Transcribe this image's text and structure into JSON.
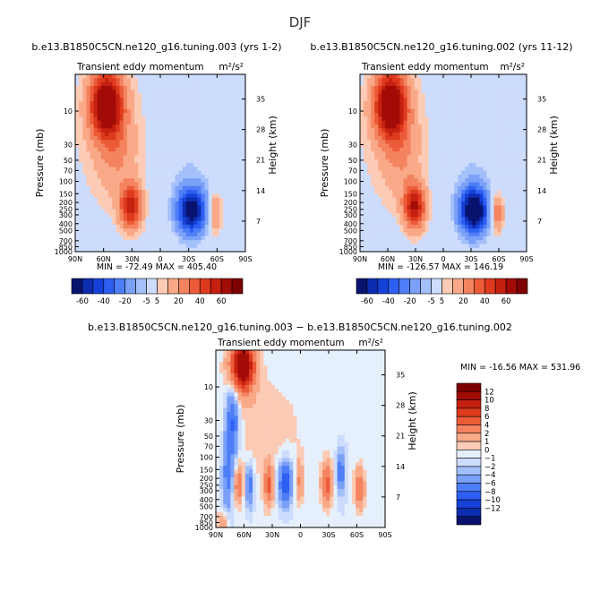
{
  "page": {
    "title": "DJF"
  },
  "colors": {
    "neg": [
      "#08136e",
      "#0c2db0",
      "#1541d8",
      "#2d5ff2",
      "#4e7ef7",
      "#7aa0f8",
      "#a4c0fb",
      "#cddcfd"
    ],
    "neutral": "#e6f0fd",
    "pos": [
      "#fbe2d6",
      "#fccbb5",
      "#f9a988",
      "#f4835f",
      "#ec5b38",
      "#dd3a1e",
      "#c52010",
      "#a20b06",
      "#7d0000"
    ]
  },
  "chart_data": [
    {
      "type": "contour",
      "id": "top-left",
      "title": "b.e13.B1850C5CN.ne120_g16.tuning.003 (yrs 1-2)",
      "left_label": "Transient eddy momentum",
      "right_label": "m²/s²",
      "ylabel": "Pressure (mb)",
      "y2label": "Height (km)",
      "x_ticks": [
        "90N",
        "60N",
        "30N",
        "0",
        "30S",
        "60S",
        "90S"
      ],
      "x_values": [
        90,
        60,
        30,
        0,
        -30,
        -60,
        -90
      ],
      "p_ticks": [
        10,
        30,
        50,
        70,
        100,
        150,
        200,
        250,
        300,
        400,
        500,
        700,
        850,
        1000
      ],
      "p_labels": [
        "10",
        "30",
        "50",
        "70",
        "100",
        "150",
        "200",
        "250",
        "300",
        "400",
        "500",
        "700",
        "850",
        "1000"
      ],
      "z_ticks": [
        35,
        28,
        21,
        14,
        7
      ],
      "ylim": [
        1000,
        3
      ],
      "min": -72.49,
      "max": 405.4,
      "stats_text": "MIN = -72.49   MAX = 405.40",
      "levels": [
        -60,
        -50,
        -40,
        -30,
        -20,
        -10,
        -5,
        5,
        10,
        20,
        30,
        40,
        50,
        60
      ],
      "legend_labels": [
        "-60",
        "-40",
        "-20",
        "-5",
        "5",
        "20",
        "40",
        "60"
      ],
      "features": [
        {
          "lat": 57,
          "p": 8,
          "amp": 80,
          "sx": 12,
          "sy": 0.75
        },
        {
          "lat": 46,
          "p": 40,
          "amp": 14,
          "sx": 14,
          "sy": 1.0
        },
        {
          "lat": 31,
          "p": 230,
          "amp": 55,
          "sx": 8,
          "sy": 0.5
        },
        {
          "lat": -33,
          "p": 260,
          "amp": -72,
          "sx": 10,
          "sy": 0.5
        },
        {
          "lat": -58,
          "p": 280,
          "amp": 26,
          "sx": 5,
          "sy": 0.45
        },
        {
          "lat": 45,
          "p": 25,
          "amp": 8,
          "sx": 40,
          "sy": 1.8
        },
        {
          "lat": -20,
          "p": 40,
          "amp": -6,
          "sx": 30,
          "sy": 1.5
        }
      ]
    },
    {
      "type": "contour",
      "id": "top-right",
      "title": "b.e13.B1850C5CN.ne120_g16.tuning.002 (yrs 11-12)",
      "left_label": "Transient eddy momentum",
      "right_label": "m²/s²",
      "ylabel": "Pressure (mb)",
      "y2label": "Height (km)",
      "x_ticks": [
        "90N",
        "60N",
        "30N",
        "0",
        "30S",
        "60S",
        "90S"
      ],
      "x_values": [
        90,
        60,
        30,
        0,
        -30,
        -60,
        -90
      ],
      "p_ticks": [
        10,
        30,
        50,
        70,
        100,
        150,
        200,
        250,
        300,
        400,
        500,
        700,
        850,
        1000
      ],
      "p_labels": [
        "10",
        "30",
        "50",
        "70",
        "100",
        "150",
        "200",
        "250",
        "300",
        "400",
        "500",
        "700",
        "850",
        "1000"
      ],
      "z_ticks": [
        35,
        28,
        21,
        14,
        7
      ],
      "ylim": [
        1000,
        3
      ],
      "min": -126.57,
      "max": 146.19,
      "stats_text": "MIN = -126.57   MAX = 146.19",
      "levels": [
        -60,
        -50,
        -40,
        -30,
        -20,
        -10,
        -5,
        5,
        10,
        20,
        30,
        40,
        50,
        60
      ],
      "legend_labels": [
        "-60",
        "-40",
        "-20",
        "-5",
        "5",
        "20",
        "40",
        "60"
      ],
      "features": [
        {
          "lat": 57,
          "p": 8,
          "amp": 80,
          "sx": 12,
          "sy": 0.75
        },
        {
          "lat": 46,
          "p": 40,
          "amp": 14,
          "sx": 14,
          "sy": 1.0
        },
        {
          "lat": 31,
          "p": 230,
          "amp": 60,
          "sx": 8,
          "sy": 0.5
        },
        {
          "lat": -33,
          "p": 260,
          "amp": -85,
          "sx": 10,
          "sy": 0.5
        },
        {
          "lat": -58,
          "p": 280,
          "amp": 30,
          "sx": 5,
          "sy": 0.45
        },
        {
          "lat": 45,
          "p": 25,
          "amp": 8,
          "sx": 40,
          "sy": 1.8
        },
        {
          "lat": -20,
          "p": 40,
          "amp": -6,
          "sx": 30,
          "sy": 1.5
        }
      ]
    },
    {
      "type": "contour",
      "id": "bottom-diff",
      "title": "b.e13.B1850C5CN.ne120_g16.tuning.003 − b.e13.B1850C5CN.ne120_g16.tuning.002",
      "left_label": "Transient eddy momentum",
      "right_label": "m²/s²",
      "ylabel": "Pressure (mb)",
      "y2label": "Height (km)",
      "x_ticks": [
        "90N",
        "60N",
        "30N",
        "0",
        "30S",
        "60S",
        "90S"
      ],
      "x_values": [
        90,
        60,
        30,
        0,
        -30,
        -60,
        -90
      ],
      "p_ticks": [
        10,
        30,
        50,
        70,
        100,
        150,
        200,
        250,
        300,
        400,
        500,
        700,
        850,
        1000
      ],
      "p_labels": [
        "10",
        "30",
        "50",
        "70",
        "100",
        "150",
        "200",
        "250",
        "300",
        "400",
        "500",
        "700",
        "850",
        "1000"
      ],
      "z_ticks": [
        35,
        28,
        21,
        14,
        7
      ],
      "ylim": [
        1000,
        3
      ],
      "min": -16.56,
      "max": 531.96,
      "stats_text": "MIN = -16.56   MAX = 531.96",
      "levels": [
        -12,
        -10,
        -8,
        -6,
        -4,
        -2,
        -1,
        0,
        1,
        2,
        4,
        6,
        8,
        10,
        12
      ],
      "legend_labels": [
        "12",
        "10",
        "8",
        "6",
        "4",
        "2",
        "1",
        "0",
        "−1",
        "−2",
        "−4",
        "−6",
        "−8",
        "−10",
        "−12"
      ],
      "features": [
        {
          "lat": 62,
          "p": 5,
          "amp": 16,
          "sx": 9,
          "sy": 0.6
        },
        {
          "lat": 72,
          "p": 30,
          "amp": -7,
          "sx": 5,
          "sy": 1.0
        },
        {
          "lat": 66,
          "p": 250,
          "amp": 6,
          "sx": 3,
          "sy": 0.45
        },
        {
          "lat": 54,
          "p": 250,
          "amp": -6,
          "sx": 3,
          "sy": 0.5
        },
        {
          "lat": 34,
          "p": 250,
          "amp": 6,
          "sx": 3.5,
          "sy": 0.5
        },
        {
          "lat": 16,
          "p": 230,
          "amp": -9,
          "sx": 5,
          "sy": 0.5
        },
        {
          "lat": 1,
          "p": 220,
          "amp": 4,
          "sx": 3,
          "sy": 0.5
        },
        {
          "lat": -28,
          "p": 240,
          "amp": 7,
          "sx": 4,
          "sy": 0.5
        },
        {
          "lat": -43,
          "p": 160,
          "amp": -6,
          "sx": 3,
          "sy": 0.45
        },
        {
          "lat": -63,
          "p": 280,
          "amp": 6,
          "sx": 4,
          "sy": 0.5
        },
        {
          "lat": 78,
          "p": 180,
          "amp": -5,
          "sx": 4,
          "sy": 0.9
        },
        {
          "lat": 83,
          "p": 900,
          "amp": 4,
          "sx": 4,
          "sy": 0.3
        },
        {
          "lat": 40,
          "p": 40,
          "amp": 1.5,
          "sx": 40,
          "sy": 1.6
        }
      ]
    }
  ]
}
